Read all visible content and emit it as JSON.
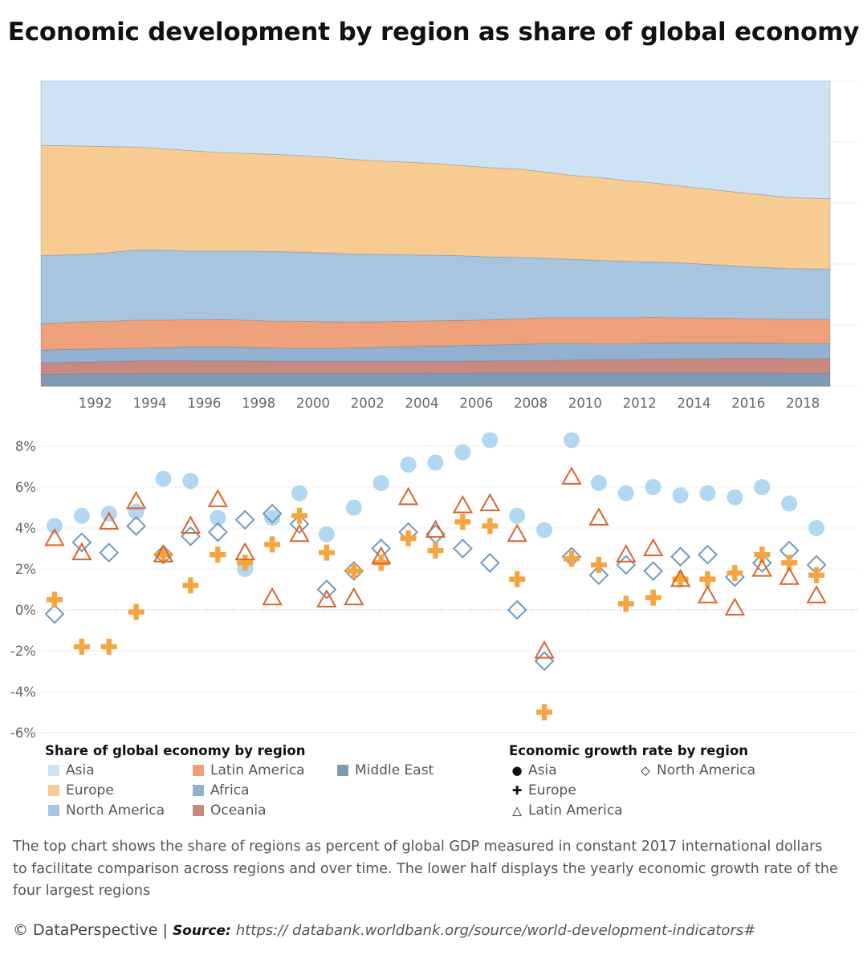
{
  "title": "Economic development by region as share of global economy",
  "chart_data": [
    {
      "type": "area",
      "stacked_percent": true,
      "x": [
        1991,
        1992,
        1993,
        1994,
        1995,
        1996,
        1997,
        1998,
        1999,
        2000,
        2001,
        2002,
        2003,
        2004,
        2005,
        2006,
        2007,
        2008,
        2009,
        2010,
        2011,
        2012,
        2013,
        2014,
        2015,
        2016,
        2017,
        2018,
        2019
      ],
      "xticks": [
        "1992",
        "1994",
        "1996",
        "1998",
        "2000",
        "2002",
        "2004",
        "2006",
        "2008",
        "2010",
        "2012",
        "2014",
        "2016",
        "2018"
      ],
      "ylim": [
        0,
        100
      ],
      "gridlines": true,
      "series": [
        {
          "name": "Middle East",
          "color": "#7f9ab2",
          "values": [
            3.8,
            4.0,
            4.0,
            4.0,
            4.1,
            4.1,
            4.1,
            4.1,
            4.1,
            4.1,
            4.1,
            4.1,
            4.1,
            4.1,
            4.2,
            4.2,
            4.3,
            4.3,
            4.3,
            4.3,
            4.3,
            4.3,
            4.3,
            4.3,
            4.3,
            4.3,
            4.3,
            4.2,
            4.2
          ]
        },
        {
          "name": "Oceania",
          "color": "#c88a80",
          "values": [
            3.8,
            3.9,
            4.0,
            4.2,
            4.2,
            4.1,
            4.1,
            4.1,
            4.0,
            4.0,
            4.0,
            4.0,
            4.0,
            4.0,
            3.9,
            3.9,
            3.9,
            4.0,
            4.1,
            4.2,
            4.3,
            4.4,
            4.5,
            4.6,
            4.7,
            4.8,
            4.8,
            4.8,
            4.8
          ]
        },
        {
          "name": "Africa",
          "color": "#92b0cf",
          "values": [
            4.2,
            4.2,
            4.2,
            4.2,
            4.3,
            4.6,
            4.6,
            4.5,
            4.4,
            4.2,
            4.2,
            4.4,
            4.6,
            4.8,
            5.0,
            5.1,
            5.2,
            5.3,
            5.5,
            5.4,
            5.2,
            5.1,
            5.2,
            5.2,
            5.1,
            5.0,
            4.9,
            4.9,
            4.9
          ]
        },
        {
          "name": "Latin America",
          "color": "#eda07a",
          "values": [
            8.5,
            9.0,
            9.0,
            9.2,
            9.0,
            8.9,
            9.0,
            8.9,
            8.8,
            8.9,
            8.8,
            8.5,
            8.4,
            8.3,
            8.3,
            8.3,
            8.3,
            8.4,
            8.5,
            8.5,
            8.6,
            8.6,
            8.5,
            8.3,
            8.2,
            8.1,
            8.0,
            7.9,
            7.9
          ]
        },
        {
          "name": "North America",
          "color": "#a8c5df",
          "values": [
            22.5,
            22.0,
            22.5,
            23.0,
            23.0,
            22.5,
            22.4,
            22.6,
            22.8,
            22.7,
            22.5,
            22.3,
            22.0,
            21.8,
            21.5,
            21.2,
            20.6,
            20.2,
            19.6,
            19.1,
            18.8,
            18.5,
            18.2,
            18.0,
            17.6,
            17.2,
            16.9,
            16.7,
            16.6
          ]
        },
        {
          "name": "Europe",
          "color": "#f8cb93",
          "values": [
            36.1,
            35.6,
            34.8,
            33.8,
            33.2,
            33.0,
            32.4,
            32.1,
            31.9,
            31.7,
            31.4,
            31.0,
            30.7,
            30.4,
            30.1,
            29.6,
            29.3,
            29.0,
            28.2,
            27.6,
            27.2,
            26.5,
            25.9,
            25.2,
            24.7,
            24.2,
            23.8,
            23.3,
            23.0
          ]
        },
        {
          "name": "Asia",
          "color": "#cde3f3",
          "values": [
            21.1,
            21.3,
            21.5,
            21.6,
            22.2,
            22.8,
            23.4,
            23.7,
            24.0,
            24.4,
            25.0,
            25.7,
            26.2,
            26.6,
            27.0,
            27.7,
            28.4,
            28.8,
            29.8,
            30.9,
            31.6,
            32.6,
            33.4,
            34.4,
            35.4,
            36.4,
            37.3,
            38.2,
            38.6
          ]
        }
      ]
    },
    {
      "type": "scatter",
      "x": [
        1991,
        1992,
        1993,
        1994,
        1995,
        1996,
        1997,
        1998,
        1999,
        2000,
        2001,
        2002,
        2003,
        2004,
        2005,
        2006,
        2007,
        2008,
        2009,
        2010,
        2011,
        2012,
        2013,
        2014,
        2015,
        2016,
        2017,
        2018,
        2019
      ],
      "ylim": [
        -6,
        8
      ],
      "yticks": [
        -6,
        -4,
        -2,
        0,
        2,
        4,
        6,
        8
      ],
      "ytick_labels": [
        "-6%",
        "-4%",
        "-2%",
        "0%",
        "2%",
        "4%",
        "6%",
        "8%"
      ],
      "series": [
        {
          "name": "Asia",
          "marker": "circle",
          "color": "#a9d3ef",
          "values": [
            4.1,
            4.6,
            4.7,
            4.8,
            6.4,
            6.3,
            4.5,
            2.0,
            4.5,
            5.7,
            3.7,
            5.0,
            6.2,
            7.1,
            7.2,
            7.7,
            8.3,
            4.6,
            3.9,
            8.3,
            6.2,
            5.7,
            6.0,
            5.6,
            5.7,
            5.5,
            6.0,
            5.2,
            4.0
          ]
        },
        {
          "name": "North America",
          "marker": "diamond",
          "color": "#6f9ac0",
          "values": [
            -0.2,
            3.3,
            2.8,
            4.1,
            2.7,
            3.6,
            3.8,
            4.4,
            4.7,
            4.2,
            1.0,
            1.9,
            3.0,
            3.8,
            3.7,
            3.0,
            2.3,
            0.0,
            -2.5,
            2.6,
            1.7,
            2.2,
            1.9,
            2.6,
            2.7,
            1.6,
            2.3,
            2.9,
            2.2
          ]
        },
        {
          "name": "Europe",
          "marker": "cross",
          "color": "#f5a540",
          "values": [
            0.5,
            -1.8,
            -1.8,
            -0.1,
            2.7,
            1.2,
            2.7,
            2.3,
            3.2,
            4.6,
            2.8,
            1.9,
            2.3,
            3.5,
            2.9,
            4.3,
            4.1,
            1.5,
            -5.0,
            2.5,
            2.2,
            0.3,
            0.6,
            1.5,
            1.5,
            1.8,
            2.7,
            2.3,
            1.7
          ]
        },
        {
          "name": "Latin America",
          "marker": "triangle",
          "color": "#d9652d",
          "values": [
            3.5,
            2.8,
            4.3,
            5.3,
            2.7,
            4.1,
            5.4,
            2.8,
            0.6,
            3.7,
            0.5,
            0.6,
            2.6,
            5.5,
            3.9,
            5.1,
            5.2,
            3.7,
            -2.0,
            6.5,
            4.5,
            2.7,
            3.0,
            1.5,
            0.7,
            0.1,
            2.0,
            1.6,
            0.7
          ]
        }
      ]
    }
  ],
  "legend_share": {
    "title": "Share of global economy by region",
    "items": [
      {
        "label": "Asia",
        "color": "#cde3f3"
      },
      {
        "label": "Europe",
        "color": "#f8cb93"
      },
      {
        "label": "North America",
        "color": "#a8c5df"
      },
      {
        "label": "Latin America",
        "color": "#eda07a"
      },
      {
        "label": "Africa",
        "color": "#92b0cf"
      },
      {
        "label": "Oceania",
        "color": "#c88a80"
      },
      {
        "label": "Middle East",
        "color": "#7f9ab2"
      }
    ]
  },
  "legend_growth": {
    "title": "Economic growth rate by region",
    "items": [
      {
        "label": "Asia",
        "icon": "circle-icon"
      },
      {
        "label": "North America",
        "icon": "diamond-icon"
      },
      {
        "label": "Europe",
        "icon": "cross-icon"
      },
      {
        "label": "Latin America",
        "icon": "triangle-icon"
      }
    ]
  },
  "description": "The top chart shows the share of regions as percent of global GDP measured in constant 2017 international dollars to facilitate comparison across regions and over time. The lower half displays the yearly economic growth rate of the four largest regions",
  "footer": {
    "brand": "© DataPerspective |",
    "source_label": "Source:",
    "source_url": "https:// databank.worldbank.org/source/world-development-indicators#"
  }
}
